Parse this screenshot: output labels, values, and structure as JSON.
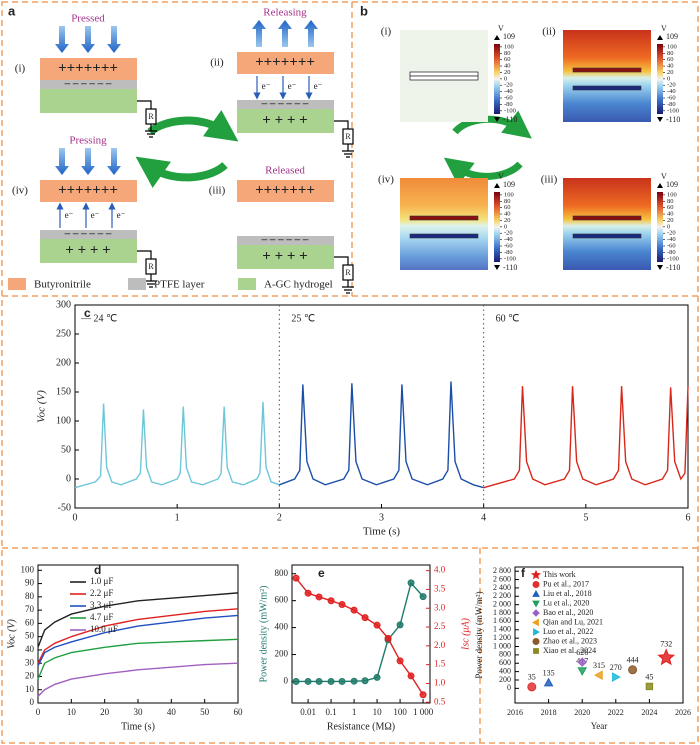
{
  "panel_a": {
    "label": "a",
    "states": [
      {
        "numeral": "(i)",
        "caption": "Pressed"
      },
      {
        "numeral": "(ii)",
        "caption": "Releasing"
      },
      {
        "numeral": "(iii)",
        "caption": "Released"
      },
      {
        "numeral": "(iv)",
        "caption": "Pressing"
      }
    ],
    "positive_charges": "+++++++",
    "negative_charges": "– – – – – –",
    "hydrogel_charges": "+  +  +  +",
    "electron": "e⁻",
    "resistor": "R",
    "legend": [
      "Butyronitrile",
      "PTFE layer",
      "A-GC hydrogel"
    ]
  },
  "panel_b": {
    "label": "b",
    "numerals": [
      "(i)",
      "(ii)",
      "(iii)",
      "(iv)"
    ],
    "colorbar": {
      "unit": "V",
      "lim": [
        -110,
        109
      ],
      "ticks": [
        100,
        80,
        60,
        40,
        20,
        0,
        -20,
        -40,
        -60,
        -80,
        -100
      ]
    }
  },
  "chart_data": [
    {
      "type": "line",
      "panel_label": "c",
      "xlabel": "Time (s)",
      "ylabel": "Voc (V)",
      "xlim": [
        0,
        6
      ],
      "xticks": [
        0,
        1,
        2,
        3,
        4,
        5,
        6
      ],
      "ylim": [
        -50,
        300
      ],
      "yticks": [
        -50,
        0,
        50,
        100,
        150,
        200,
        250,
        300
      ],
      "dividers": [
        2,
        4
      ],
      "annotations": [
        "— 24 ℃",
        "25 ℃",
        "60 ℃"
      ],
      "series": [
        {
          "color": "#6ec6d8",
          "x": [
            0,
            0.2,
            0.25,
            0.28,
            0.31,
            0.36,
            0.45,
            0.6,
            0.64,
            0.67,
            0.7,
            0.75,
            0.85,
            1.0,
            1.03,
            1.06,
            1.09,
            1.14,
            1.25,
            1.4,
            1.43,
            1.46,
            1.49,
            1.54,
            1.65,
            1.78,
            1.81,
            1.84,
            1.87,
            1.92,
            2.0
          ],
          "values": [
            -15,
            -5,
            5,
            130,
            20,
            -5,
            -10,
            0,
            10,
            120,
            20,
            -5,
            -10,
            0,
            10,
            125,
            20,
            -5,
            -10,
            0,
            10,
            125,
            20,
            -5,
            -10,
            0,
            10,
            133,
            20,
            -5,
            -10
          ]
        },
        {
          "color": "#1c4fa8",
          "x": [
            2.0,
            2.15,
            2.2,
            2.23,
            2.27,
            2.33,
            2.45,
            2.63,
            2.68,
            2.71,
            2.75,
            2.81,
            2.95,
            3.12,
            3.17,
            3.2,
            3.24,
            3.3,
            3.45,
            3.6,
            3.65,
            3.68,
            3.72,
            3.78,
            3.9,
            4.0
          ],
          "values": [
            -10,
            0,
            15,
            163,
            30,
            0,
            -10,
            0,
            15,
            165,
            30,
            0,
            -10,
            0,
            15,
            163,
            30,
            0,
            -10,
            0,
            15,
            168,
            30,
            0,
            -10,
            -15
          ]
        },
        {
          "color": "#d8281c",
          "x": [
            4.0,
            4.3,
            4.35,
            4.38,
            4.42,
            4.48,
            4.6,
            4.79,
            4.84,
            4.87,
            4.91,
            4.97,
            5.1,
            5.27,
            5.32,
            5.35,
            5.39,
            5.45,
            5.58,
            5.75,
            5.8,
            5.83,
            5.87,
            5.93,
            5.97,
            6.0
          ],
          "values": [
            -15,
            0,
            15,
            160,
            30,
            0,
            -10,
            0,
            15,
            160,
            30,
            0,
            -10,
            0,
            15,
            160,
            30,
            0,
            -10,
            0,
            15,
            158,
            30,
            0,
            10,
            160
          ]
        }
      ]
    },
    {
      "type": "line",
      "panel_label": "d",
      "xlabel": "Time (s)",
      "ylabel": "Voc (V)",
      "legend": "upper left",
      "xlim": [
        0,
        60
      ],
      "xticks": [
        0,
        10,
        20,
        30,
        40,
        50,
        60
      ],
      "ylim": [
        0,
        104
      ],
      "yticks": [
        0,
        10,
        20,
        30,
        40,
        50,
        60,
        70,
        80,
        90,
        100
      ],
      "x": [
        0,
        2,
        5,
        10,
        20,
        30,
        40,
        50,
        60
      ],
      "series": [
        {
          "name": "1.0 μF",
          "color": "#222222",
          "values": [
            42,
            55,
            61,
            67,
            73,
            77,
            79,
            81,
            83
          ]
        },
        {
          "name": "2.2 μF",
          "color": "#e02020",
          "values": [
            30,
            40,
            45,
            50,
            58,
            63,
            66,
            69,
            71
          ]
        },
        {
          "name": "3.3 μF",
          "color": "#2050c0",
          "values": [
            28,
            38,
            42,
            46,
            53,
            58,
            61,
            64,
            66
          ]
        },
        {
          "name": "4.7 μF",
          "color": "#20a040",
          "values": [
            18,
            30,
            34,
            38,
            42,
            45,
            46,
            47,
            48
          ]
        },
        {
          "name": "10.0 μF",
          "color": "#a060c0",
          "values": [
            5,
            10,
            14,
            18,
            22,
            25,
            27,
            29,
            30
          ]
        }
      ]
    },
    {
      "type": "line",
      "panel_label": "e",
      "xlabel": "Resistance (MΩ)",
      "ylabel": "Power density (mW/m²)",
      "y2label": "Isc (μA)",
      "xscale": "log",
      "xlim": [
        0.002,
        2000
      ],
      "xticks": [
        0.01,
        0.1,
        1,
        10,
        100,
        {
          "value": 1000,
          "label": "1 000"
        }
      ],
      "ylim": [
        -160,
        865
      ],
      "yticks": [
        0,
        200,
        400,
        600,
        800
      ],
      "y2lim": [
        0.48,
        4.15
      ],
      "y2ticks": [
        0.5,
        {
          "value": 1,
          "label": "1.0"
        },
        1.5,
        {
          "value": 2,
          "label": "2.0"
        },
        2.5,
        {
          "value": 3,
          "label": "3.0"
        },
        3.5,
        {
          "value": 4,
          "label": "4.0"
        }
      ],
      "x": [
        0.003,
        0.01,
        0.03,
        0.1,
        0.3,
        1,
        3,
        10,
        30,
        100,
        300,
        1000
      ],
      "series": [
        {
          "color": "#1f7a6a",
          "marker": "circle",
          "values": [
            0,
            0,
            0,
            0,
            0,
            2,
            5,
            30,
            310,
            420,
            732,
            630
          ]
        },
        {
          "color": "#e02020",
          "marker": "circle",
          "axis": "y2",
          "values": [
            3.8,
            3.4,
            3.3,
            3.2,
            3.1,
            2.95,
            2.75,
            2.55,
            2.2,
            1.6,
            1.2,
            0.7
          ]
        }
      ]
    },
    {
      "type": "scatter",
      "panel_label": "f",
      "xlabel": "Year",
      "ylabel": "Power density (mW/m²)",
      "legend": "upper left",
      "data_labels": true,
      "xlim": [
        2016,
        2026
      ],
      "xticks": [
        2016,
        2018,
        2020,
        2022,
        2024,
        2026
      ],
      "ylim": [
        -350,
        2900
      ],
      "yticks": [
        0,
        200,
        400,
        600,
        800,
        {
          "value": 1000,
          "label": "1 000"
        },
        {
          "value": 1200,
          "label": "1 200"
        },
        {
          "value": 1400,
          "label": "1 400"
        },
        {
          "value": 1600,
          "label": "1 600"
        },
        {
          "value": 1800,
          "label": "1 800"
        },
        {
          "value": 2000,
          "label": "2 000"
        },
        {
          "value": 2200,
          "label": "2 200"
        },
        {
          "value": 2400,
          "label": "2 400"
        },
        {
          "value": 2600,
          "label": "2 600"
        },
        {
          "value": 2800,
          "label": "2 800"
        }
      ],
      "series": [
        {
          "name": "This work",
          "color": "#e02020",
          "marker": "star",
          "x": [
            2025
          ],
          "values": [
            732
          ]
        },
        {
          "name": "Pu et al., 2017",
          "color": "#e03030",
          "marker": "circle",
          "x": [
            2017
          ],
          "values": [
            35
          ]
        },
        {
          "name": "Liu et al., 2018",
          "color": "#2060c0",
          "marker": "triangle-up",
          "x": [
            2018
          ],
          "values": [
            135
          ]
        },
        {
          "name": "Lu et al., 2020",
          "color": "#20a060",
          "marker": "triangle-down",
          "x": [
            2020
          ],
          "values": [
            417
          ]
        },
        {
          "name": "Bao et al., 2020",
          "color": "#9a60c8",
          "marker": "diamond",
          "x": [
            2020
          ],
          "values": [
            626
          ]
        },
        {
          "name": "Qian and Lu, 2021",
          "color": "#f0a020",
          "marker": "triangle-left",
          "x": [
            2021
          ],
          "values": [
            315
          ]
        },
        {
          "name": "Luo et al., 2022",
          "color": "#20b8d8",
          "marker": "triangle-right",
          "x": [
            2022
          ],
          "values": [
            270
          ]
        },
        {
          "name": "Zhao et al., 2023",
          "color": "#8b5a2b",
          "marker": "circle",
          "x": [
            2023
          ],
          "values": [
            444
          ]
        },
        {
          "name": "Xiao et al., 2024",
          "color": "#8a8a20",
          "marker": "square",
          "x": [
            2024
          ],
          "values": [
            45
          ]
        }
      ]
    }
  ]
}
